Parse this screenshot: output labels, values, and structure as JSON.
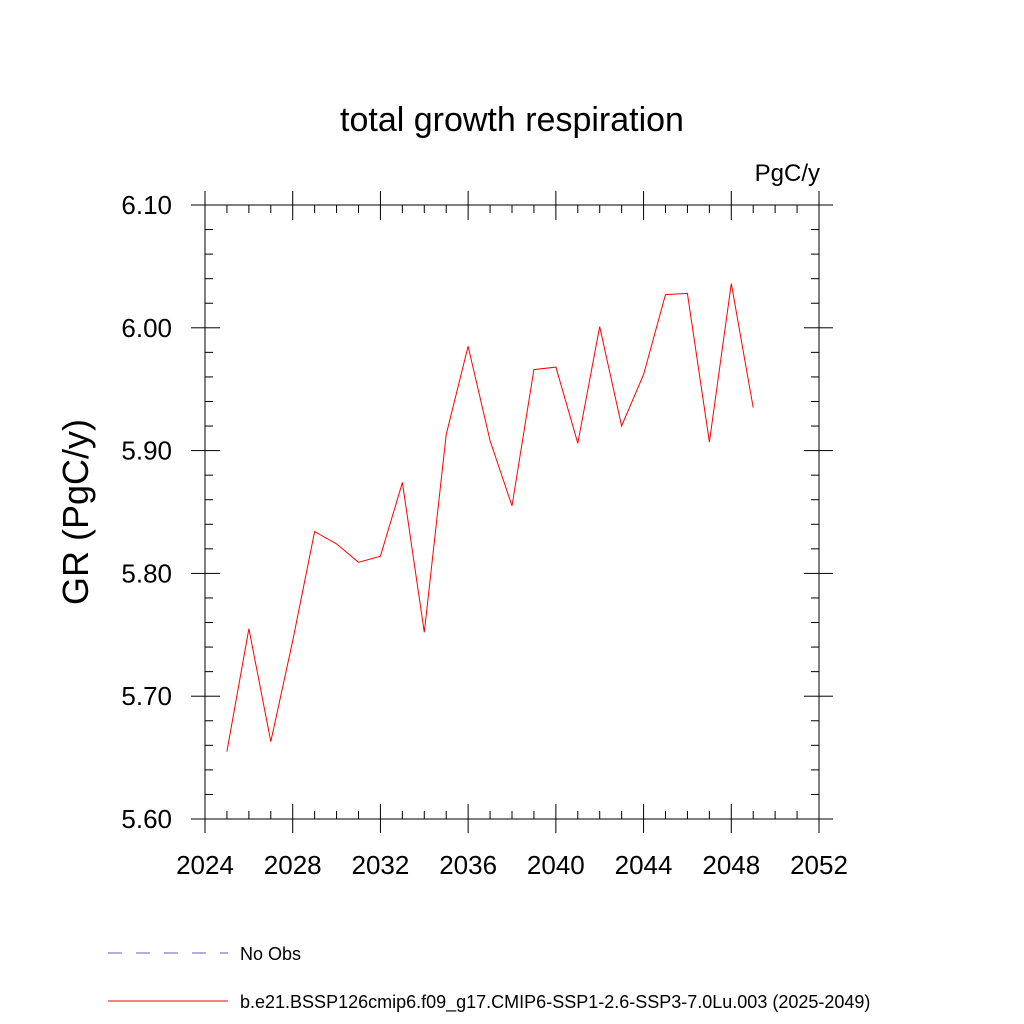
{
  "chart_data": {
    "type": "line",
    "title": "total growth respiration",
    "units_label": "PgC/y",
    "xlabel": "",
    "ylabel": "GR  (PgC/y)",
    "xlim": [
      2024,
      2052
    ],
    "ylim": [
      5.6,
      6.1
    ],
    "x_ticks": [
      "2024",
      "2028",
      "2032",
      "2036",
      "2040",
      "2044",
      "2048",
      "2052"
    ],
    "y_ticks": [
      "5.60",
      "5.70",
      "5.80",
      "5.90",
      "6.00",
      "6.10"
    ],
    "grid": false,
    "legend_position": "bottom",
    "series": [
      {
        "name": "b.e21.BSSP126cmip6.f09_g17.CMIP6-SSP1-2.6-SSP3-7.0Lu.003 (2025-2049)",
        "color": "#ff0000",
        "style": "solid",
        "x": [
          2025,
          2026,
          2027,
          2028,
          2029,
          2030,
          2031,
          2032,
          2033,
          2034,
          2035,
          2036,
          2037,
          2038,
          2039,
          2040,
          2041,
          2042,
          2043,
          2044,
          2045,
          2046,
          2047,
          2048,
          2049
        ],
        "y": [
          5.655,
          5.755,
          5.663,
          5.745,
          5.834,
          5.824,
          5.809,
          5.814,
          5.874,
          5.752,
          5.913,
          5.985,
          5.908,
          5.855,
          5.966,
          5.968,
          5.906,
          6.001,
          5.92,
          5.962,
          6.027,
          6.028,
          5.907,
          6.036,
          5.935
        ]
      }
    ],
    "legend": [
      {
        "label": "No Obs",
        "color": "#6a5acd",
        "style": "dashed"
      },
      {
        "label": "b.e21.BSSP126cmip6.f09_g17.CMIP6-SSP1-2.6-SSP3-7.0Lu.003 (2025-2049)",
        "color": "#ff0000",
        "style": "solid"
      }
    ]
  }
}
